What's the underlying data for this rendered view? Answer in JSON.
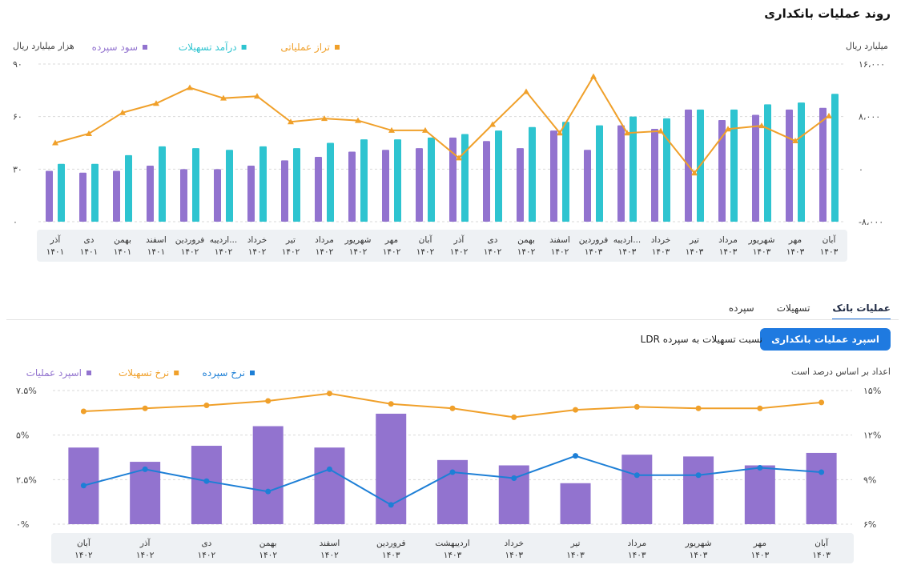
{
  "page_title": "روند عملیات بانکداری",
  "tabs": [
    {
      "label": "سپرده",
      "active": false
    },
    {
      "label": "تسهیلات",
      "active": false
    },
    {
      "label": "عملیات بانک",
      "active": true
    }
  ],
  "buttons": {
    "primary_label": "اسپرد عملیات بانکداری",
    "secondary_label": "نسبت تسهیلات به سپرده LDR"
  },
  "colors": {
    "purple": "#9273cf",
    "teal": "#2ec4d0",
    "orange": "#f0a02a",
    "blue": "#1d7fd6",
    "accent": "#1f7ae0"
  },
  "chart_data": [
    {
      "type": "bar",
      "title": "",
      "left_axis_label": "هزار میلیارد ریال",
      "right_axis_label": "میلیارد ریال",
      "left_ticks": [
        "۹۰",
        "۶۰",
        "۳۰",
        "۰"
      ],
      "right_ticks": [
        "۱۶،۰۰۰",
        "۸،۰۰۰",
        "۰",
        "-۸،۰۰۰"
      ],
      "ylim_left": [
        0,
        90
      ],
      "ylim_right": [
        -8000,
        16000
      ],
      "grid": true,
      "legend_position": "top",
      "categories": [
        [
          "آذر",
          "۱۴۰۱"
        ],
        [
          "دی",
          "۱۴۰۱"
        ],
        [
          "بهمن",
          "۱۴۰۱"
        ],
        [
          "اسفند",
          "۱۴۰۱"
        ],
        [
          "فروردین",
          "۱۴۰۲"
        ],
        [
          "اردیبه...",
          "۱۴۰۲"
        ],
        [
          "خرداد",
          "۱۴۰۲"
        ],
        [
          "تیر",
          "۱۴۰۲"
        ],
        [
          "مرداد",
          "۱۴۰۲"
        ],
        [
          "شهریور",
          "۱۴۰۲"
        ],
        [
          "مهر",
          "۱۴۰۲"
        ],
        [
          "آبان",
          "۱۴۰۲"
        ],
        [
          "آذر",
          "۱۴۰۲"
        ],
        [
          "دی",
          "۱۴۰۲"
        ],
        [
          "بهمن",
          "۱۴۰۲"
        ],
        [
          "اسفند",
          "۱۴۰۲"
        ],
        [
          "فروردین",
          "۱۴۰۳"
        ],
        [
          "اردیبه...",
          "۱۴۰۳"
        ],
        [
          "خرداد",
          "۱۴۰۳"
        ],
        [
          "تیر",
          "۱۴۰۳"
        ],
        [
          "مرداد",
          "۱۴۰۳"
        ],
        [
          "شهریور",
          "۱۴۰۳"
        ],
        [
          "مهر",
          "۱۴۰۳"
        ],
        [
          "آبان",
          "۱۴۰۳"
        ]
      ],
      "series": [
        {
          "name": "سود سپرده",
          "kind": "bar",
          "axis": "left",
          "color": "#9273cf",
          "values": [
            29,
            28,
            29,
            32,
            30,
            30,
            32,
            35,
            37,
            40,
            41,
            42,
            48,
            46,
            42,
            52,
            41,
            55,
            53,
            64,
            58,
            61,
            64,
            65
          ]
        },
        {
          "name": "درآمد تسهیلات",
          "kind": "bar",
          "axis": "left",
          "color": "#2ec4d0",
          "values": [
            33,
            33,
            38,
            43,
            42,
            41,
            43,
            42,
            45,
            47,
            47,
            48,
            50,
            52,
            54,
            57,
            55,
            60,
            59,
            64,
            64,
            67,
            68,
            73
          ]
        },
        {
          "name": "تراز عملیاتی",
          "kind": "line",
          "axis": "right",
          "color": "#f0a02a",
          "values": [
            4000,
            5400,
            8600,
            10000,
            12400,
            10800,
            11100,
            7200,
            7700,
            7400,
            5900,
            5900,
            1700,
            6800,
            11800,
            5500,
            14100,
            5500,
            5800,
            -600,
            6100,
            6600,
            4300,
            8100
          ]
        }
      ]
    },
    {
      "type": "bar",
      "title": "",
      "right_axis_label": "اعداد بر اساس درصد است",
      "left_ticks": [
        "۷.۵%",
        "۵%",
        "۲.۵%",
        "۰%"
      ],
      "right_ticks": [
        "۱۵%",
        "۱۲%",
        "۹%",
        "۶%"
      ],
      "ylim_left": [
        0,
        7.5
      ],
      "ylim_right": [
        6,
        15
      ],
      "grid": true,
      "legend_position": "top",
      "categories": [
        [
          "آبان",
          "۱۴۰۲"
        ],
        [
          "آذر",
          "۱۴۰۲"
        ],
        [
          "دی",
          "۱۴۰۲"
        ],
        [
          "بهمن",
          "۱۴۰۲"
        ],
        [
          "اسفند",
          "۱۴۰۲"
        ],
        [
          "فروردین",
          "۱۴۰۳"
        ],
        [
          "اردیبهشت",
          "۱۴۰۳"
        ],
        [
          "خرداد",
          "۱۴۰۳"
        ],
        [
          "تیر",
          "۱۴۰۳"
        ],
        [
          "مرداد",
          "۱۴۰۳"
        ],
        [
          "شهریور",
          "۱۴۰۳"
        ],
        [
          "مهر",
          "۱۴۰۳"
        ],
        [
          "آبان",
          "۱۴۰۳"
        ]
      ],
      "series": [
        {
          "name": "اسپرد عملیات",
          "kind": "bar",
          "axis": "left",
          "color": "#9273cf",
          "values": [
            4.3,
            3.5,
            4.4,
            5.5,
            4.3,
            6.2,
            3.6,
            3.3,
            2.3,
            3.9,
            3.8,
            3.3,
            4.0
          ]
        },
        {
          "name": "نرخ تسهیلات",
          "kind": "line",
          "axis": "right",
          "color": "#f0a02a",
          "values": [
            13.6,
            13.8,
            14.0,
            14.3,
            14.8,
            14.1,
            13.8,
            13.2,
            13.7,
            13.9,
            13.8,
            13.8,
            14.2
          ]
        },
        {
          "name": "نرخ سپرده",
          "kind": "line",
          "axis": "right",
          "color": "#1d7fd6",
          "values": [
            8.6,
            9.7,
            8.9,
            8.2,
            9.7,
            7.3,
            9.5,
            9.1,
            10.6,
            9.3,
            9.3,
            9.8,
            9.5
          ]
        }
      ]
    }
  ]
}
